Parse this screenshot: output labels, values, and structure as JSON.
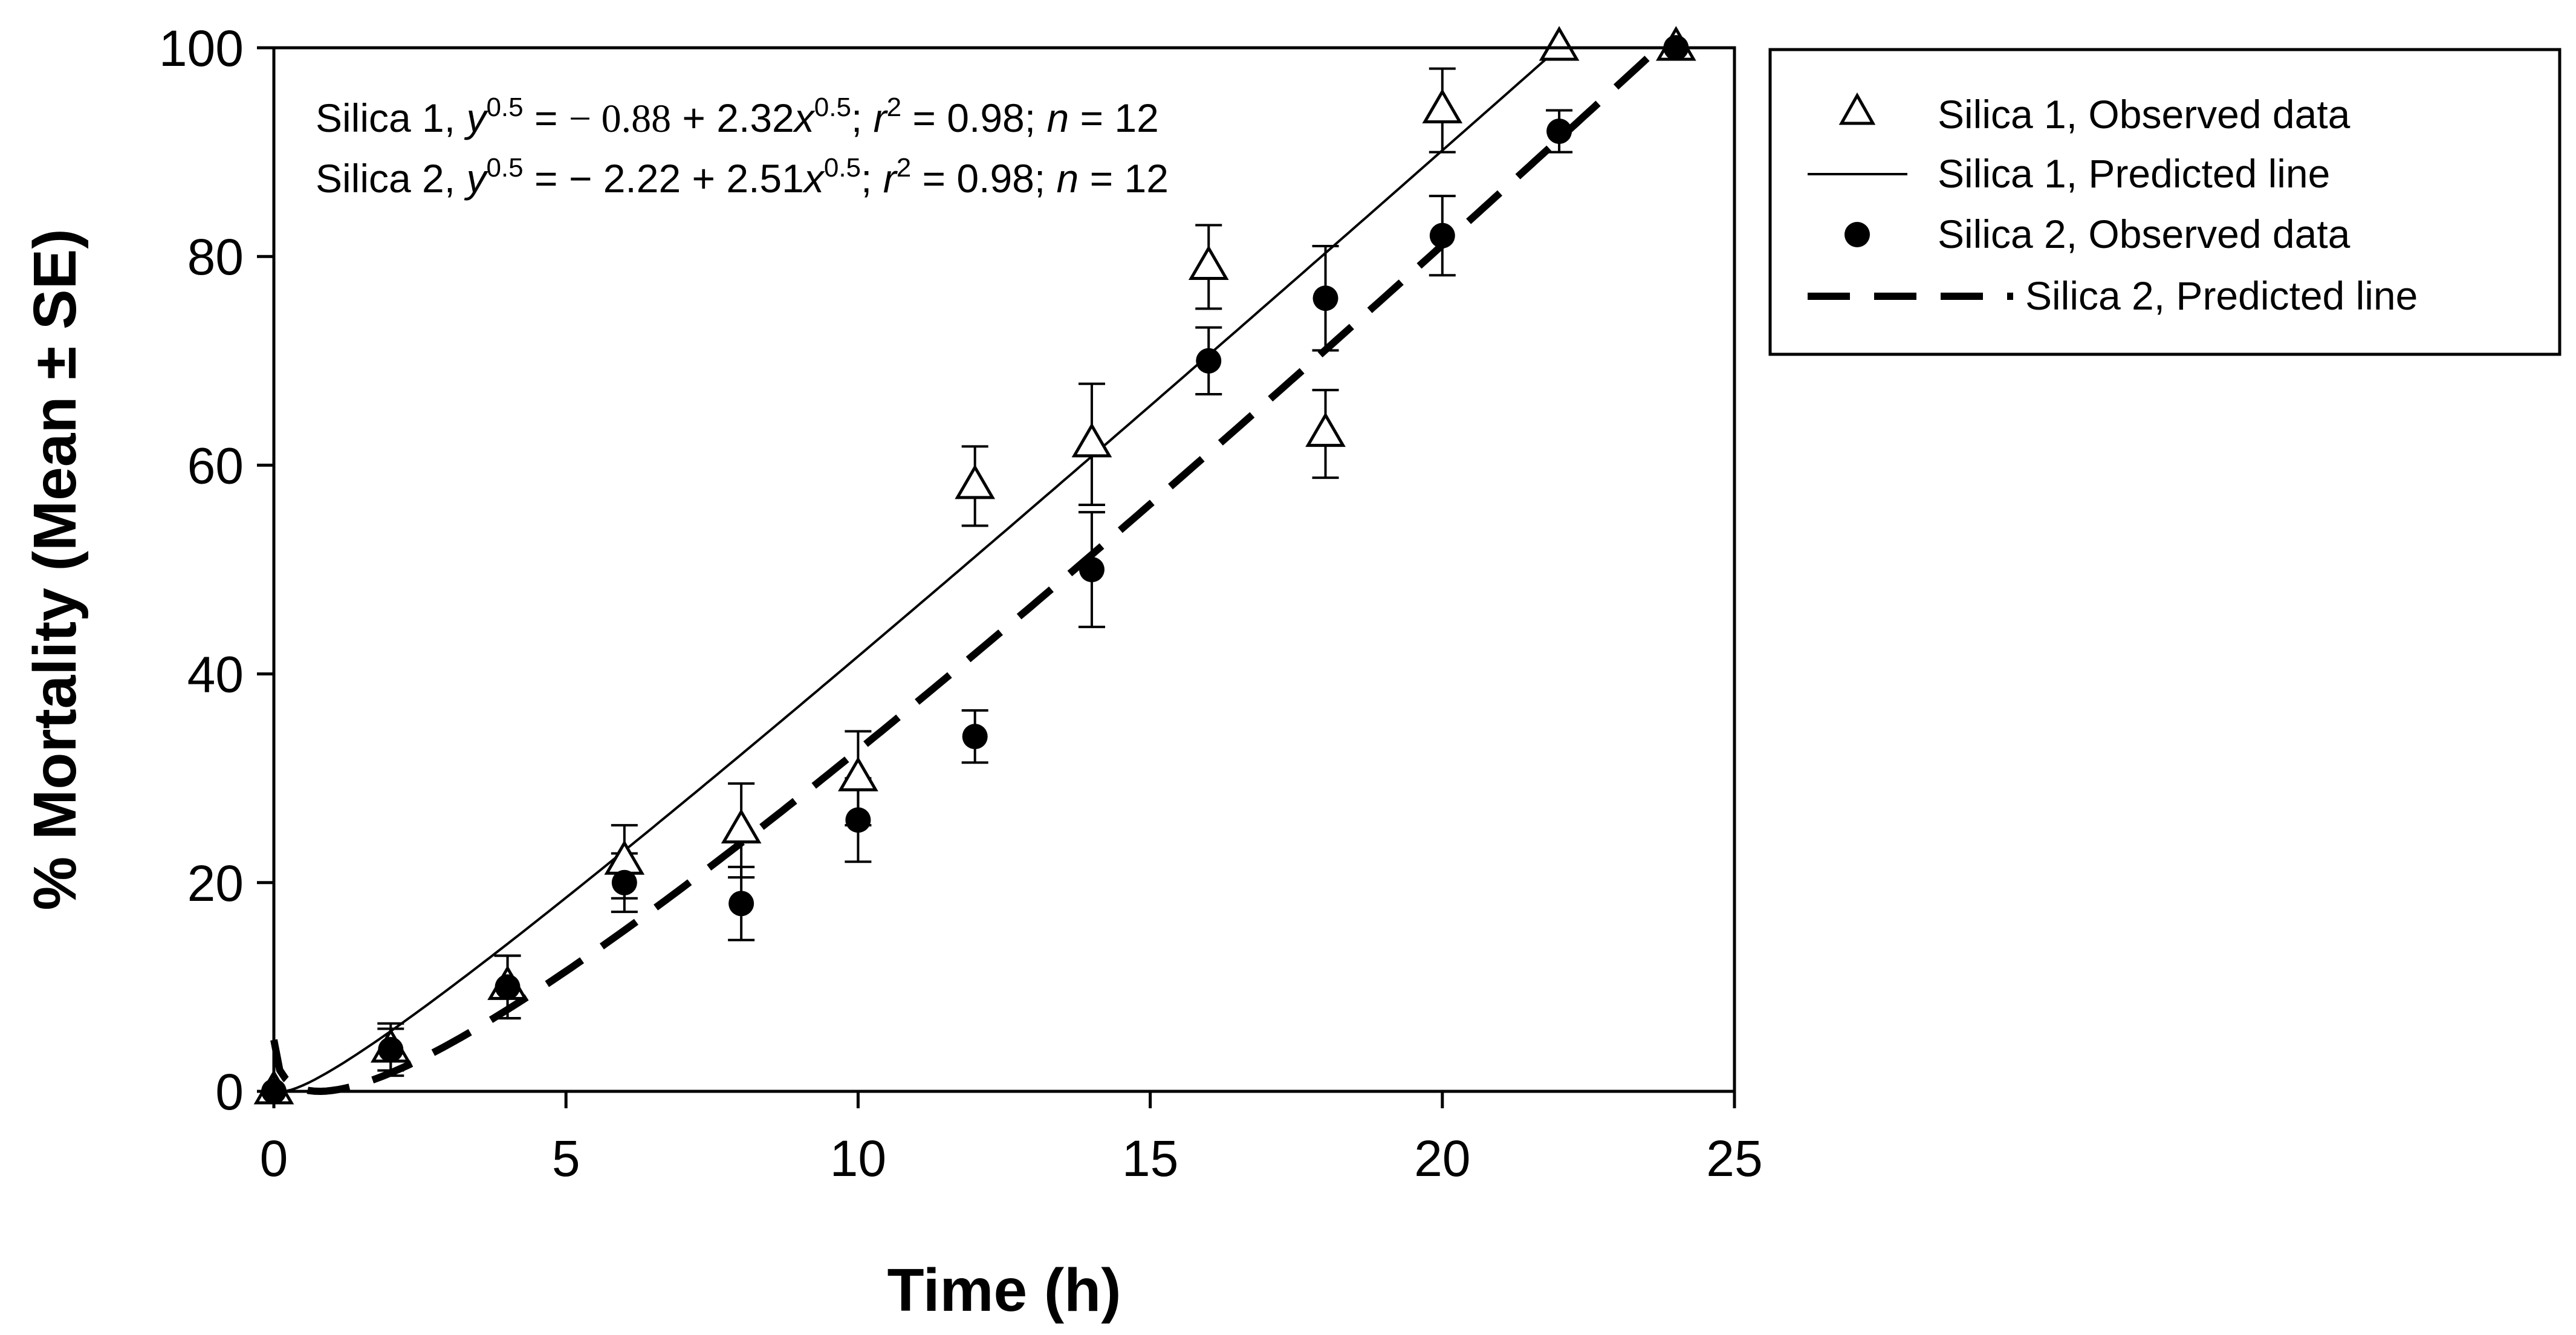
{
  "chart_data": {
    "type": "scatter",
    "title": "",
    "xlabel": "Time (h)",
    "ylabel": "% Mortality (Mean ± SE)",
    "xlim": [
      0,
      25
    ],
    "ylim": [
      0,
      100
    ],
    "xticks": [
      0,
      5,
      10,
      15,
      20,
      25
    ],
    "yticks": [
      0,
      20,
      40,
      60,
      80,
      100
    ],
    "x_tick_labels": [
      "0",
      "5",
      "10",
      "15",
      "20",
      "25"
    ],
    "y_tick_labels": [
      "0",
      "20",
      "40",
      "60",
      "80",
      "100"
    ],
    "grid": false,
    "legend_position": "outside-right-top",
    "series": [
      {
        "name": "Silica 1, Observed data",
        "marker": "open-triangle",
        "x": [
          0,
          2,
          4,
          6,
          8,
          10,
          12,
          14,
          16,
          18,
          20,
          22,
          24
        ],
        "y": [
          0,
          4,
          10,
          22,
          25,
          30,
          58,
          62,
          79,
          63,
          94,
          100,
          100
        ],
        "se": [
          0,
          2.5,
          3,
          3.5,
          4.5,
          4.5,
          3.8,
          5.8,
          4,
          4.2,
          4,
          0,
          0
        ]
      },
      {
        "name": "Silica 1, Predicted line",
        "line_style": "solid-thin",
        "equation": {
          "a": -0.88,
          "b": 2.32,
          "form": "sqrt(y) = a + b*sqrt(x)"
        },
        "x_range": [
          0,
          24
        ]
      },
      {
        "name": "Silica 2, Observed data",
        "marker": "filled-circle",
        "x": [
          0,
          2,
          4,
          6,
          8,
          10,
          12,
          14,
          16,
          18,
          20,
          22,
          24
        ],
        "y": [
          0,
          4,
          10,
          20,
          18,
          26,
          34,
          50,
          70,
          76,
          82,
          92,
          100
        ],
        "se": [
          0,
          2,
          3,
          2.8,
          3.5,
          4,
          2.5,
          5.5,
          3.2,
          5,
          3.8,
          2,
          0
        ]
      },
      {
        "name": "Silica 2, Predicted line",
        "line_style": "dashed-thick",
        "equation": {
          "a": -2.22,
          "b": 2.51,
          "form": "sqrt(y) = a + b*sqrt(x)"
        },
        "x_range": [
          0,
          24
        ]
      }
    ],
    "annotations": [
      {
        "label": "Silica 1",
        "eq_mid": " = ",
        "eq_a": "− 0.88",
        "eq_b": " + 2.32",
        "r2": " = 0.98; ",
        "n": " = 12"
      },
      {
        "label": "Silica 2",
        "eq_mid": " = − 2.22 + 2.51",
        "eq_b": "",
        "r2": " = 0.98; ",
        "n": " = 12"
      }
    ],
    "legend": [
      "Silica 1, Observed data",
      "Silica 1, Predicted line",
      "Silica 2, Observed data",
      "Silica 2, Predicted line"
    ]
  }
}
